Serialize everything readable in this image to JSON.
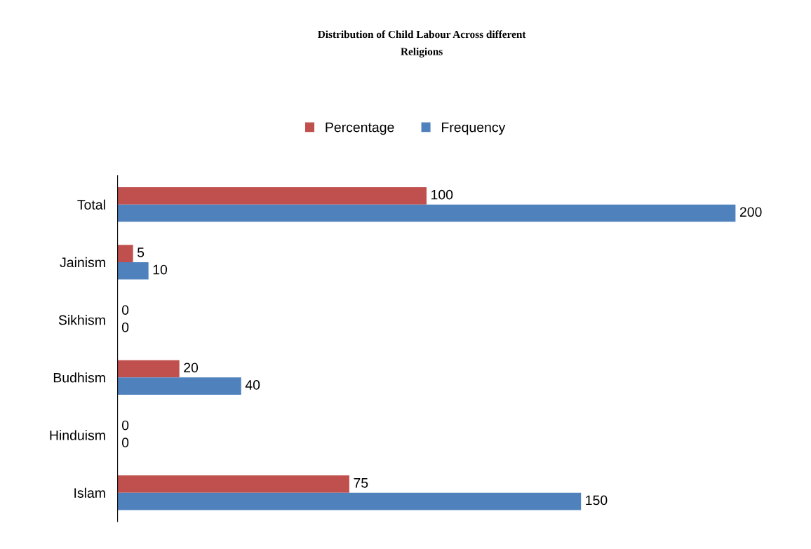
{
  "chart_data": {
    "type": "bar",
    "orientation": "horizontal",
    "title": "Distribution of Child Labour Across different\nReligions",
    "categories": [
      "Total",
      "Jainism",
      "Sikhism",
      "Budhism",
      "Hinduism",
      "Islam"
    ],
    "series": [
      {
        "name": "Percentage",
        "color": "#c0504d",
        "values": [
          100,
          5,
          0,
          20,
          0,
          75
        ]
      },
      {
        "name": "Frequency",
        "color": "#4f81bd",
        "values": [
          200,
          10,
          0,
          40,
          0,
          150
        ]
      }
    ],
    "data_labels": true,
    "legend": "top",
    "grid": false,
    "tick_labels": "y"
  }
}
